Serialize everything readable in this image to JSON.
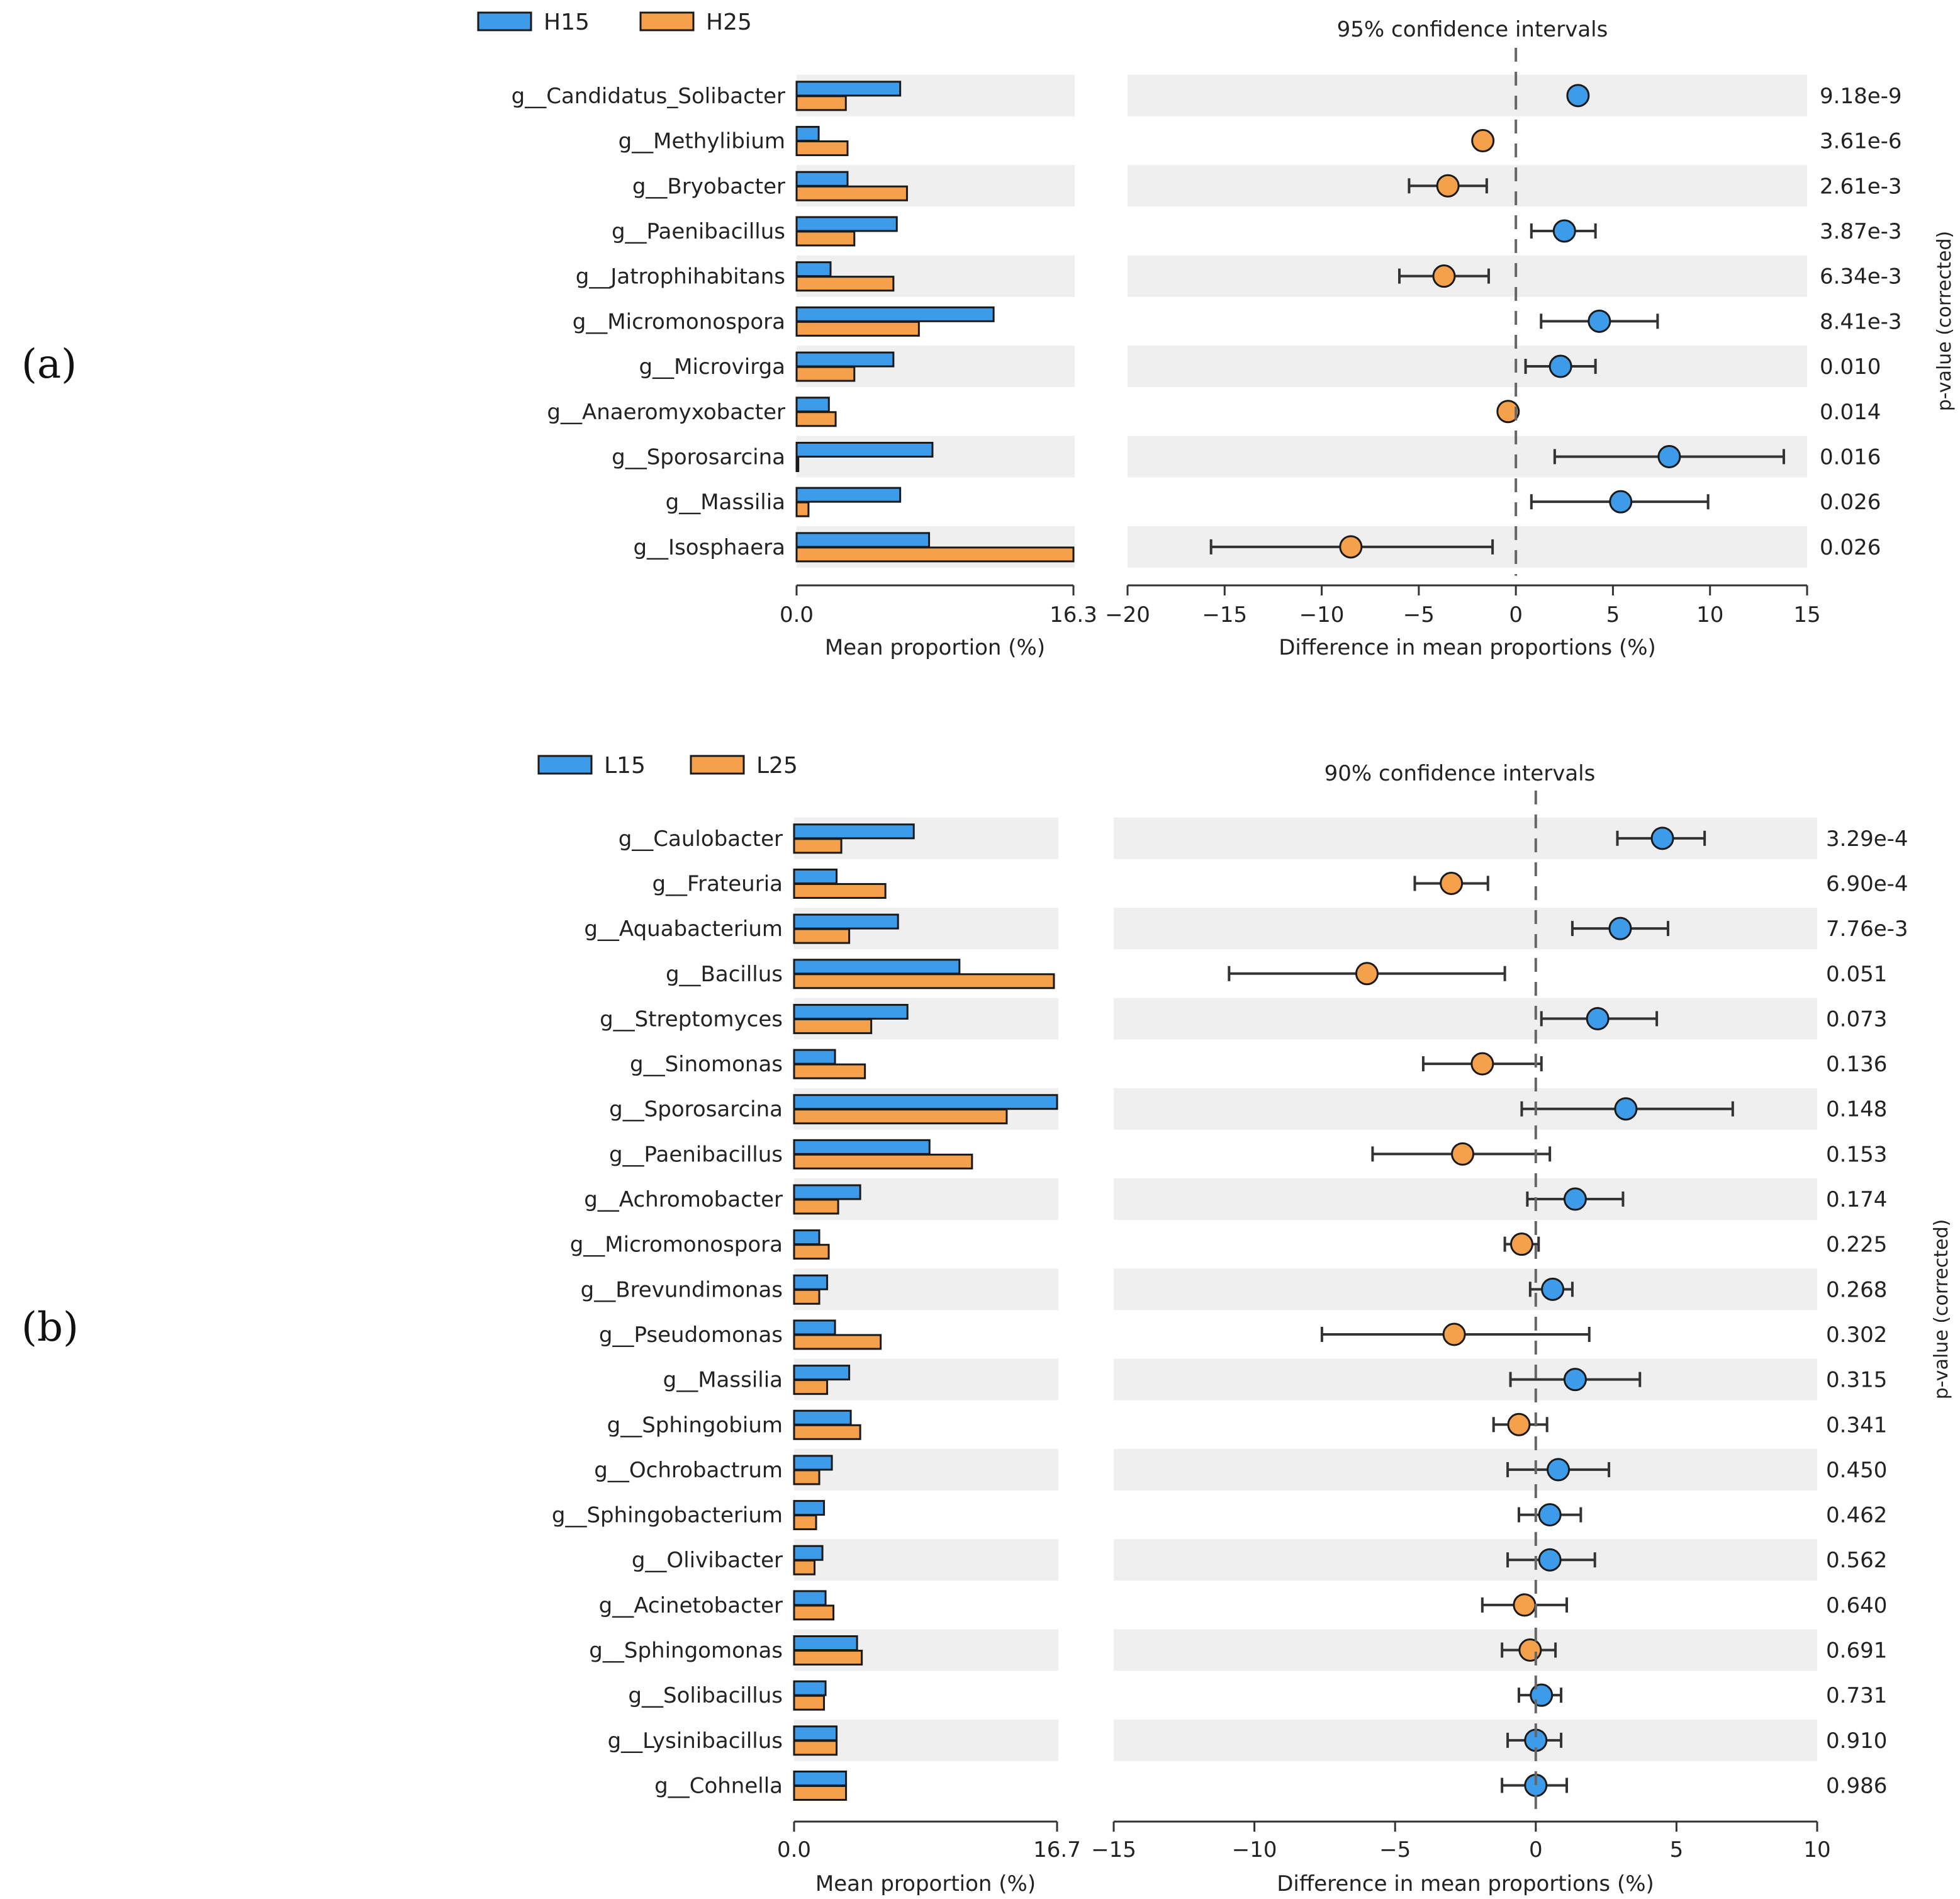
{
  "panels": [
    {
      "panel_label": "(a)",
      "legend": [
        {
          "name": "H15",
          "color": "#3d9be9"
        },
        {
          "name": "H25",
          "color": "#f5a04a"
        }
      ],
      "ci_title": "95% confidence intervals",
      "bar_xlabel": "Mean proportion (%)",
      "bar_ticks": [
        "0.0",
        "16.3"
      ],
      "diff_xlabel": "Difference in mean proportions (%)",
      "diff_ticks": [
        "−20",
        "−15",
        "−10",
        "−5",
        "0",
        "5",
        "10",
        "15"
      ],
      "pvalue_label": "p-value (corrected)",
      "rows": [
        {
          "genus": "g__Candidatus_Solibacter",
          "a": 6.1,
          "b": 2.9,
          "diff": 3.2,
          "lo": 2.8,
          "hi": 3.6,
          "p": "9.18e-9"
        },
        {
          "genus": "g__Methylibium",
          "a": 1.3,
          "b": 3.0,
          "diff": -1.7,
          "lo": -2.0,
          "hi": -1.4,
          "p": "3.61e-6"
        },
        {
          "genus": "g__Bryobacter",
          "a": 3.0,
          "b": 6.5,
          "diff": -3.5,
          "lo": -5.5,
          "hi": -1.5,
          "p": "2.61e-3"
        },
        {
          "genus": "g__Paenibacillus",
          "a": 5.9,
          "b": 3.4,
          "diff": 2.5,
          "lo": 0.8,
          "hi": 4.1,
          "p": "3.87e-3"
        },
        {
          "genus": "g__Jatrophihabitans",
          "a": 2.0,
          "b": 5.7,
          "diff": -3.7,
          "lo": -6.0,
          "hi": -1.4,
          "p": "6.34e-3"
        },
        {
          "genus": "g__Micromonospora",
          "a": 11.6,
          "b": 7.2,
          "diff": 4.3,
          "lo": 1.3,
          "hi": 7.3,
          "p": "8.41e-3"
        },
        {
          "genus": "g__Microvirga",
          "a": 5.7,
          "b": 3.4,
          "diff": 2.3,
          "lo": 0.5,
          "hi": 4.1,
          "p": "0.010"
        },
        {
          "genus": "g__Anaeromyxobacter",
          "a": 1.9,
          "b": 2.3,
          "diff": -0.4,
          "lo": -0.6,
          "hi": -0.2,
          "p": "0.014"
        },
        {
          "genus": "g__Sporosarcina",
          "a": 8.0,
          "b": 0.1,
          "diff": 7.9,
          "lo": 2.0,
          "hi": 13.8,
          "p": "0.016"
        },
        {
          "genus": "g__Massilia",
          "a": 6.1,
          "b": 0.7,
          "diff": 5.4,
          "lo": 0.8,
          "hi": 9.9,
          "p": "0.026"
        },
        {
          "genus": "g__Isosphaera",
          "a": 7.8,
          "b": 16.3,
          "diff": -8.5,
          "lo": -15.7,
          "hi": -1.2,
          "p": "0.026"
        }
      ]
    },
    {
      "panel_label": "(b)",
      "legend": [
        {
          "name": "L15",
          "color": "#3d9be9"
        },
        {
          "name": "L25",
          "color": "#f5a04a"
        }
      ],
      "ci_title": "90% confidence intervals",
      "bar_xlabel": "Mean proportion (%)",
      "bar_ticks": [
        "0.0",
        "16.7"
      ],
      "diff_xlabel": "Difference in mean proportions (%)",
      "diff_ticks": [
        "−15",
        "−10",
        "−5",
        "0",
        "5",
        "10"
      ],
      "pvalue_label": "p-value (corrected)",
      "rows": [
        {
          "genus": "g__Caulobacter",
          "a": 7.6,
          "b": 3.0,
          "diff": 4.5,
          "lo": 2.9,
          "hi": 6.0,
          "p": "3.29e-4"
        },
        {
          "genus": "g__Frateuria",
          "a": 2.7,
          "b": 5.8,
          "diff": -3.0,
          "lo": -4.3,
          "hi": -1.7,
          "p": "6.90e-4"
        },
        {
          "genus": "g__Aquabacterium",
          "a": 6.6,
          "b": 3.5,
          "diff": 3.0,
          "lo": 1.3,
          "hi": 4.7,
          "p": "7.76e-3"
        },
        {
          "genus": "g__Bacillus",
          "a": 10.5,
          "b": 16.5,
          "diff": -6.0,
          "lo": -10.9,
          "hi": -1.1,
          "p": "0.051"
        },
        {
          "genus": "g__Streptomyces",
          "a": 7.2,
          "b": 4.9,
          "diff": 2.2,
          "lo": 0.2,
          "hi": 4.3,
          "p": "0.073"
        },
        {
          "genus": "g__Sinomonas",
          "a": 2.6,
          "b": 4.5,
          "diff": -1.9,
          "lo": -4.0,
          "hi": 0.2,
          "p": "0.136"
        },
        {
          "genus": "g__Sporosarcina",
          "a": 16.7,
          "b": 13.5,
          "diff": 3.2,
          "lo": -0.5,
          "hi": 7.0,
          "p": "0.148"
        },
        {
          "genus": "g__Paenibacillus",
          "a": 8.6,
          "b": 11.3,
          "diff": -2.6,
          "lo": -5.8,
          "hi": 0.5,
          "p": "0.153"
        },
        {
          "genus": "g__Achromobacter",
          "a": 4.2,
          "b": 2.8,
          "diff": 1.4,
          "lo": -0.3,
          "hi": 3.1,
          "p": "0.174"
        },
        {
          "genus": "g__Micromonospora",
          "a": 1.6,
          "b": 2.2,
          "diff": -0.5,
          "lo": -1.1,
          "hi": 0.1,
          "p": "0.225"
        },
        {
          "genus": "g__Brevundimonas",
          "a": 2.1,
          "b": 1.6,
          "diff": 0.6,
          "lo": -0.2,
          "hi": 1.3,
          "p": "0.268"
        },
        {
          "genus": "g__Pseudomonas",
          "a": 2.6,
          "b": 5.5,
          "diff": -2.9,
          "lo": -7.6,
          "hi": 1.9,
          "p": "0.302"
        },
        {
          "genus": "g__Massilia",
          "a": 3.5,
          "b": 2.1,
          "diff": 1.4,
          "lo": -0.9,
          "hi": 3.7,
          "p": "0.315"
        },
        {
          "genus": "g__Sphingobium",
          "a": 3.6,
          "b": 4.2,
          "diff": -0.6,
          "lo": -1.5,
          "hi": 0.4,
          "p": "0.341"
        },
        {
          "genus": "g__Ochrobactrum",
          "a": 2.4,
          "b": 1.6,
          "diff": 0.8,
          "lo": -1.0,
          "hi": 2.6,
          "p": "0.450"
        },
        {
          "genus": "g__Sphingobacterium",
          "a": 1.9,
          "b": 1.4,
          "diff": 0.5,
          "lo": -0.6,
          "hi": 1.6,
          "p": "0.462"
        },
        {
          "genus": "g__Olivibacter",
          "a": 1.8,
          "b": 1.3,
          "diff": 0.5,
          "lo": -1.0,
          "hi": 2.1,
          "p": "0.562"
        },
        {
          "genus": "g__Acinetobacter",
          "a": 2.0,
          "b": 2.5,
          "diff": -0.4,
          "lo": -1.9,
          "hi": 1.1,
          "p": "0.640"
        },
        {
          "genus": "g__Sphingomonas",
          "a": 4.0,
          "b": 4.3,
          "diff": -0.2,
          "lo": -1.2,
          "hi": 0.7,
          "p": "0.691"
        },
        {
          "genus": "g__Solibacillus",
          "a": 2.0,
          "b": 1.9,
          "diff": 0.2,
          "lo": -0.6,
          "hi": 0.9,
          "p": "0.731"
        },
        {
          "genus": "g__Lysinibacillus",
          "a": 2.7,
          "b": 2.7,
          "diff": 0.0,
          "lo": -1.0,
          "hi": 0.9,
          "p": "0.910"
        },
        {
          "genus": "g__Cohnella",
          "a": 3.3,
          "b": 3.3,
          "diff": 0.0,
          "lo": -1.2,
          "hi": 1.1,
          "p": "0.986"
        }
      ]
    }
  ],
  "chart_data": [
    {
      "type": "bar",
      "title": "95% confidence intervals",
      "series": [
        {
          "name": "H15",
          "values": [
            6.1,
            1.3,
            3.0,
            5.9,
            2.0,
            11.6,
            5.7,
            1.9,
            8.0,
            6.1,
            7.8
          ]
        },
        {
          "name": "H25",
          "values": [
            2.9,
            3.0,
            6.5,
            3.4,
            5.7,
            7.2,
            3.4,
            2.3,
            0.1,
            0.7,
            16.3
          ]
        }
      ],
      "categories": [
        "g__Candidatus_Solibacter",
        "g__Methylibium",
        "g__Bryobacter",
        "g__Paenibacillus",
        "g__Jatrophihabitans",
        "g__Micromonospora",
        "g__Microvirga",
        "g__Anaeromyxobacter",
        "g__Sporosarcina",
        "g__Massilia",
        "g__Isosphaera"
      ],
      "xlabel": "Mean proportion (%)",
      "xlim": [
        0,
        16.3
      ],
      "diff_xlabel": "Difference in mean proportions (%)",
      "diff_xlim": [
        -20,
        15
      ],
      "ylabel_right": "p-value (corrected)"
    },
    {
      "type": "bar",
      "title": "90% confidence intervals",
      "series": [
        {
          "name": "L15",
          "values": [
            7.6,
            2.7,
            6.6,
            10.5,
            7.2,
            2.6,
            16.7,
            8.6,
            4.2,
            1.6,
            2.1,
            2.6,
            3.5,
            3.6,
            2.4,
            1.9,
            1.8,
            2.0,
            4.0,
            2.0,
            2.7,
            3.3
          ]
        },
        {
          "name": "L25",
          "values": [
            3.0,
            5.8,
            3.5,
            16.5,
            4.9,
            4.5,
            13.5,
            11.3,
            2.8,
            2.2,
            1.6,
            5.5,
            2.1,
            4.2,
            1.6,
            1.4,
            1.3,
            2.5,
            4.3,
            1.9,
            2.7,
            3.3
          ]
        }
      ],
      "categories": [
        "g__Caulobacter",
        "g__Frateuria",
        "g__Aquabacterium",
        "g__Bacillus",
        "g__Streptomyces",
        "g__Sinomonas",
        "g__Sporosarcina",
        "g__Paenibacillus",
        "g__Achromobacter",
        "g__Micromonospora",
        "g__Brevundimonas",
        "g__Pseudomonas",
        "g__Massilia",
        "g__Sphingobium",
        "g__Ochrobactrum",
        "g__Sphingobacterium",
        "g__Olivibacter",
        "g__Acinetobacter",
        "g__Sphingomonas",
        "g__Solibacillus",
        "g__Lysinibacillus",
        "g__Cohnella"
      ],
      "xlabel": "Mean proportion (%)",
      "xlim": [
        0,
        16.7
      ],
      "diff_xlabel": "Difference in mean proportions (%)",
      "diff_xlim": [
        -15,
        10
      ],
      "ylabel_right": "p-value (corrected)"
    }
  ]
}
